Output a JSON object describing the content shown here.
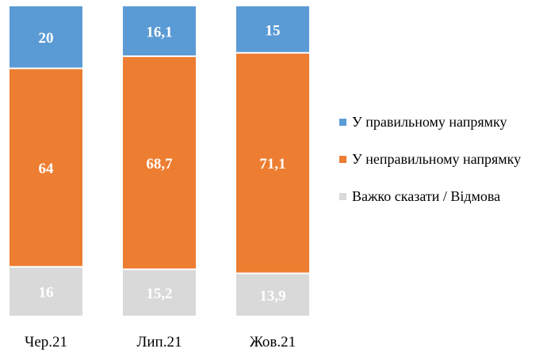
{
  "chart_data": {
    "type": "bar",
    "stacked": true,
    "normalized": true,
    "categories": [
      "Чер.21",
      "Лип.21",
      "Жов.21"
    ],
    "series": [
      {
        "name": "У правильному напрямку",
        "values": [
          "20",
          "16,1",
          "15"
        ],
        "numeric": [
          20,
          16.1,
          15
        ],
        "color": "#5b9bd5"
      },
      {
        "name": "У неправильному напрямку",
        "values": [
          "64",
          "68,7",
          "71,1"
        ],
        "numeric": [
          64,
          68.7,
          71.1
        ],
        "color": "#ed7d31"
      },
      {
        "name": "Важко сказати / Відмова",
        "values": [
          "16",
          "15,2",
          "13,9"
        ],
        "numeric": [
          16,
          15.2,
          13.9
        ],
        "color": "#d9d9d9"
      }
    ],
    "title": "",
    "xlabel": "",
    "ylabel": "",
    "ylim": [
      0,
      100
    ],
    "grid": false,
    "legend_position": "right",
    "data_labels": true
  }
}
